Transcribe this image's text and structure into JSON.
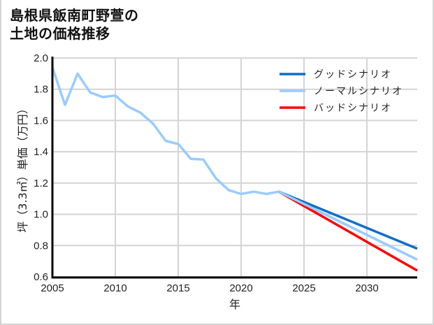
{
  "title": {
    "line1": "島根県飯南町野萱の",
    "line2": "土地の価格推移"
  },
  "colors": {
    "good": "#0f6fc6",
    "normal": "#99ccff",
    "bad": "#ff0000",
    "grid": "#d4d4d4",
    "axis": "#000000"
  },
  "chart_data": {
    "type": "line",
    "title": "島根県飯南町野萱の土地の価格推移",
    "xlabel": "年",
    "ylabel": "坪（3.3㎡）単価（万円）",
    "xlim": [
      2005,
      2034
    ],
    "ylim": [
      0.6,
      2.0
    ],
    "xticks": [
      2005,
      2010,
      2015,
      2020,
      2025,
      2030
    ],
    "yticks": [
      0.6,
      0.8,
      1.0,
      1.2,
      1.4,
      1.6,
      1.8,
      2.0
    ],
    "ytick_labels": [
      "0.6",
      "0.8",
      "1.0",
      "1.2",
      "1.4",
      "1.6",
      "1.8",
      "2.0"
    ],
    "grid": true,
    "legend_position": "upper right",
    "series": [
      {
        "name": "グッドシナリオ",
        "color": "#0f6fc6",
        "x": [
          2023,
          2034
        ],
        "values": [
          1.145,
          0.78
        ]
      },
      {
        "name": "ノーマルシナリオ",
        "color": "#99ccff",
        "x": [
          2005,
          2006,
          2007,
          2008,
          2009,
          2010,
          2011,
          2012,
          2013,
          2014,
          2015,
          2016,
          2017,
          2018,
          2019,
          2020,
          2021,
          2022,
          2023,
          2034
        ],
        "values": [
          1.94,
          1.7,
          1.9,
          1.78,
          1.75,
          1.76,
          1.69,
          1.65,
          1.58,
          1.47,
          1.45,
          1.355,
          1.35,
          1.23,
          1.155,
          1.13,
          1.145,
          1.13,
          1.145,
          0.71
        ]
      },
      {
        "name": "バッドシナリオ",
        "color": "#ff0000",
        "x": [
          2023,
          2034
        ],
        "values": [
          1.145,
          0.64
        ]
      }
    ]
  }
}
